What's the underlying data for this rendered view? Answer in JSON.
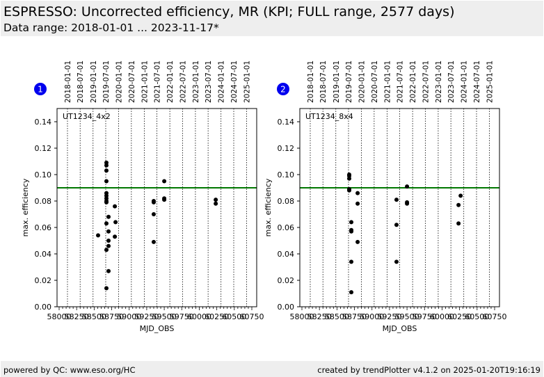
{
  "header": {
    "title": "ESPRESSO: Uncorrected efficiency, MR (KPI; FULL range, 2577 days)",
    "subtitle": "Data range: 2018-01-01 ... 2023-11-17*"
  },
  "footer": {
    "left": "powered by QC: www.eso.org/HC",
    "right": "created by trendPlotter v4.1.2 on 2025-01-20T19:16:19"
  },
  "colors": {
    "threshold": "#007700",
    "badge": "#0000ee",
    "points": "#000000",
    "header_bg": "#eeeeee"
  },
  "chart_data": [
    {
      "type": "scatter",
      "badge": "1",
      "label": "UT1234_4x2",
      "xlabel": "MJD_OBS",
      "ylabel": "max. efficiency",
      "xlim": [
        57990,
        60830
      ],
      "ylim": [
        0.0,
        0.15
      ],
      "xticks": [
        58000,
        58250,
        58500,
        58750,
        59000,
        59250,
        59500,
        59750,
        60000,
        60250,
        60500,
        60750
      ],
      "xtick_labels": [
        "58000",
        "58250",
        "58500",
        "58750",
        "59000",
        "59250",
        "59500",
        "59750",
        "60000",
        "60250",
        "60500",
        "60750"
      ],
      "yticks": [
        0.0,
        0.02,
        0.04,
        0.06,
        0.08,
        0.1,
        0.12,
        0.14
      ],
      "ytick_labels": [
        "0.00",
        "0.02",
        "0.04",
        "0.06",
        "0.08",
        "0.10",
        "0.12",
        "0.14"
      ],
      "date_lines": [
        58119,
        58300,
        58484,
        58665,
        58849,
        59031,
        59215,
        59396,
        59580,
        59761,
        59945,
        60126,
        60310,
        60492,
        60676
      ],
      "date_labels": [
        "2018-01-01",
        "2018-07-01",
        "2019-01-01",
        "2019-07-01",
        "2020-01-01",
        "2020-07-01",
        "2021-01-01",
        "2021-07-01",
        "2022-01-01",
        "2022-07-01",
        "2023-01-01",
        "2023-07-01",
        "2024-01-01",
        "2024-07-01",
        "2025-01-01"
      ],
      "threshold": 0.09,
      "grid": "vertical dotted date lines",
      "points": [
        [
          58675,
          0.109
        ],
        [
          58675,
          0.107
        ],
        [
          58675,
          0.103
        ],
        [
          58675,
          0.095
        ],
        [
          58675,
          0.086
        ],
        [
          58675,
          0.084
        ],
        [
          58675,
          0.082
        ],
        [
          58675,
          0.08
        ],
        [
          58675,
          0.079
        ],
        [
          58675,
          0.063
        ],
        [
          58675,
          0.043
        ],
        [
          58675,
          0.014
        ],
        [
          58705,
          0.068
        ],
        [
          58705,
          0.057
        ],
        [
          58705,
          0.05
        ],
        [
          58705,
          0.046
        ],
        [
          58705,
          0.027
        ],
        [
          58556,
          0.054
        ],
        [
          58795,
          0.076
        ],
        [
          58805,
          0.064
        ],
        [
          58795,
          0.053
        ],
        [
          59350,
          0.08
        ],
        [
          59350,
          0.079
        ],
        [
          59350,
          0.07
        ],
        [
          59350,
          0.049
        ],
        [
          59500,
          0.095
        ],
        [
          59500,
          0.082
        ],
        [
          59500,
          0.081
        ],
        [
          60235,
          0.081
        ],
        [
          60235,
          0.078
        ]
      ]
    },
    {
      "type": "scatter",
      "badge": "2",
      "label": "UT1234_8x4",
      "xlabel": "MJD_OBS",
      "ylabel": "max. efficiency",
      "xlim": [
        57990,
        60830
      ],
      "ylim": [
        0.0,
        0.15
      ],
      "xticks": [
        58000,
        58250,
        58500,
        58750,
        59000,
        59250,
        59500,
        59750,
        60000,
        60250,
        60500,
        60750
      ],
      "xtick_labels": [
        "58000",
        "58250",
        "58500",
        "58750",
        "59000",
        "59250",
        "59500",
        "59750",
        "60000",
        "60250",
        "60500",
        "60750"
      ],
      "yticks": [
        0.0,
        0.02,
        0.04,
        0.06,
        0.08,
        0.1,
        0.12,
        0.14
      ],
      "ytick_labels": [
        "0.00",
        "0.02",
        "0.04",
        "0.06",
        "0.08",
        "0.10",
        "0.12",
        "0.14"
      ],
      "date_lines": [
        58119,
        58300,
        58484,
        58665,
        58849,
        59031,
        59215,
        59396,
        59580,
        59761,
        59945,
        60126,
        60310,
        60492,
        60676
      ],
      "date_labels": [
        "2018-01-01",
        "2018-07-01",
        "2019-01-01",
        "2019-07-01",
        "2020-01-01",
        "2020-07-01",
        "2021-01-01",
        "2021-07-01",
        "2022-01-01",
        "2022-07-01",
        "2023-01-01",
        "2023-07-01",
        "2024-01-01",
        "2024-07-01",
        "2025-01-01"
      ],
      "threshold": 0.09,
      "grid": "vertical dotted date lines",
      "points": [
        [
          58675,
          0.1
        ],
        [
          58675,
          0.099
        ],
        [
          58675,
          0.097
        ],
        [
          58675,
          0.089
        ],
        [
          58675,
          0.088
        ],
        [
          58705,
          0.064
        ],
        [
          58705,
          0.058
        ],
        [
          58705,
          0.057
        ],
        [
          58705,
          0.034
        ],
        [
          58705,
          0.011
        ],
        [
          58795,
          0.086
        ],
        [
          58795,
          0.078
        ],
        [
          58795,
          0.049
        ],
        [
          59350,
          0.081
        ],
        [
          59350,
          0.062
        ],
        [
          59350,
          0.034
        ],
        [
          59500,
          0.091
        ],
        [
          59500,
          0.079
        ],
        [
          59500,
          0.078
        ],
        [
          60235,
          0.077
        ],
        [
          60235,
          0.063
        ],
        [
          60265,
          0.084
        ]
      ]
    }
  ]
}
